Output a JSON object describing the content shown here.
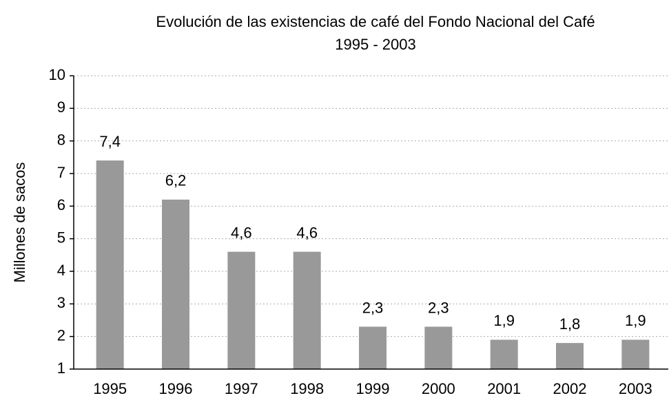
{
  "chart_data": {
    "type": "bar",
    "title": "Evolución de las existencias de café del Fondo Nacional del Café",
    "subtitle": "1995 - 2003",
    "y_label": "Millones de sacos",
    "categories": [
      "1995",
      "1996",
      "1997",
      "1998",
      "1999",
      "2000",
      "2001",
      "2002",
      "2003"
    ],
    "values": [
      7.4,
      6.2,
      4.6,
      4.6,
      2.3,
      2.3,
      1.9,
      1.8,
      1.9
    ],
    "value_labels": [
      "7,4",
      "6,2",
      "4,6",
      "4,6",
      "2,3",
      "2,3",
      "1,9",
      "1,8",
      "1,9"
    ],
    "color": "#999999",
    "ylim": [
      1,
      10
    ],
    "yticks": [
      1,
      2,
      3,
      4,
      5,
      6,
      7,
      8,
      9,
      10
    ],
    "grid": true
  }
}
